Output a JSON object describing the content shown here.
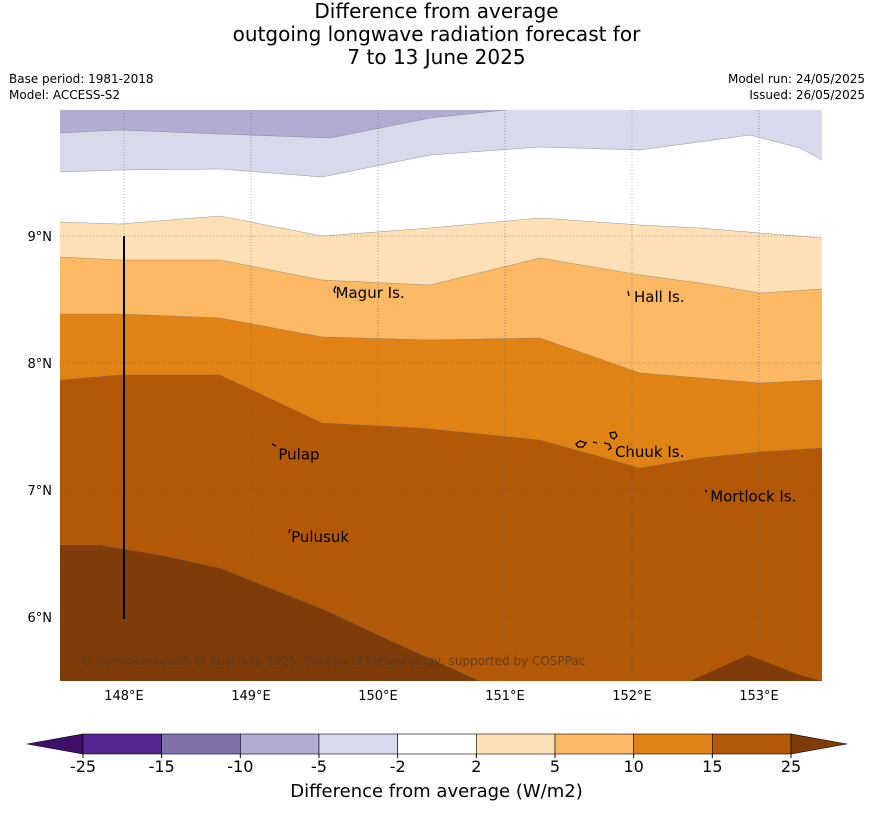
{
  "title": {
    "line1": "Difference from average",
    "line2": "outgoing longwave radiation forecast for",
    "line3": "7 to 13 June 2025"
  },
  "meta": {
    "base_period": "Base period: 1981-2018",
    "model": "Model: ACCESS-S2",
    "model_run": "Model run: 24/05/2025",
    "issued": "Issued: 26/05/2025"
  },
  "map": {
    "lon_labels": [
      "148°E",
      "149°E",
      "150°E",
      "151°E",
      "152°E",
      "153°E"
    ],
    "lat_labels": [
      "9°N",
      "8°N",
      "7°N",
      "6°N"
    ],
    "places": [
      {
        "name": "Magur Is.",
        "lon": 149.65,
        "lat": 8.55
      },
      {
        "name": "Hall Is.",
        "lon": 152.0,
        "lat": 8.52
      },
      {
        "name": "Pulap",
        "lon": 149.2,
        "lat": 7.28
      },
      {
        "name": "Chuuk Is.",
        "lon": 151.85,
        "lat": 7.3
      },
      {
        "name": "Mortlock Is.",
        "lon": 152.6,
        "lat": 6.95
      },
      {
        "name": "Pulusuk",
        "lon": 149.3,
        "lat": 6.63
      }
    ],
    "copyright": "© Commonwealth of Australia 2025, Bureau of Meteorology, supported by COSPPac",
    "colors": {
      "lt-25": "#3f0f6b",
      "-25to-15": "#54278f",
      "-15to-10": "#8073ac",
      "-10to-5": "#b2abd2",
      "-5to-2": "#d8daeb",
      "-2to2": "#ffffff",
      "2to5": "#fee0b6",
      "5to10": "#fdb863",
      "10to15": "#e08214",
      "15to25": "#b35806",
      "gt25": "#7f3b08"
    }
  },
  "colorbar": {
    "ticks": [
      "-25",
      "-15",
      "-10",
      "-5",
      "-2",
      "2",
      "5",
      "10",
      "15",
      "25"
    ],
    "title": "Difference from average (W/m2)",
    "colors": [
      "#3f0f6b",
      "#54278f",
      "#8073ac",
      "#b2abd2",
      "#d8daeb",
      "#ffffff",
      "#fee0b6",
      "#fdb863",
      "#e08214",
      "#b35806",
      "#7f3b08"
    ]
  }
}
